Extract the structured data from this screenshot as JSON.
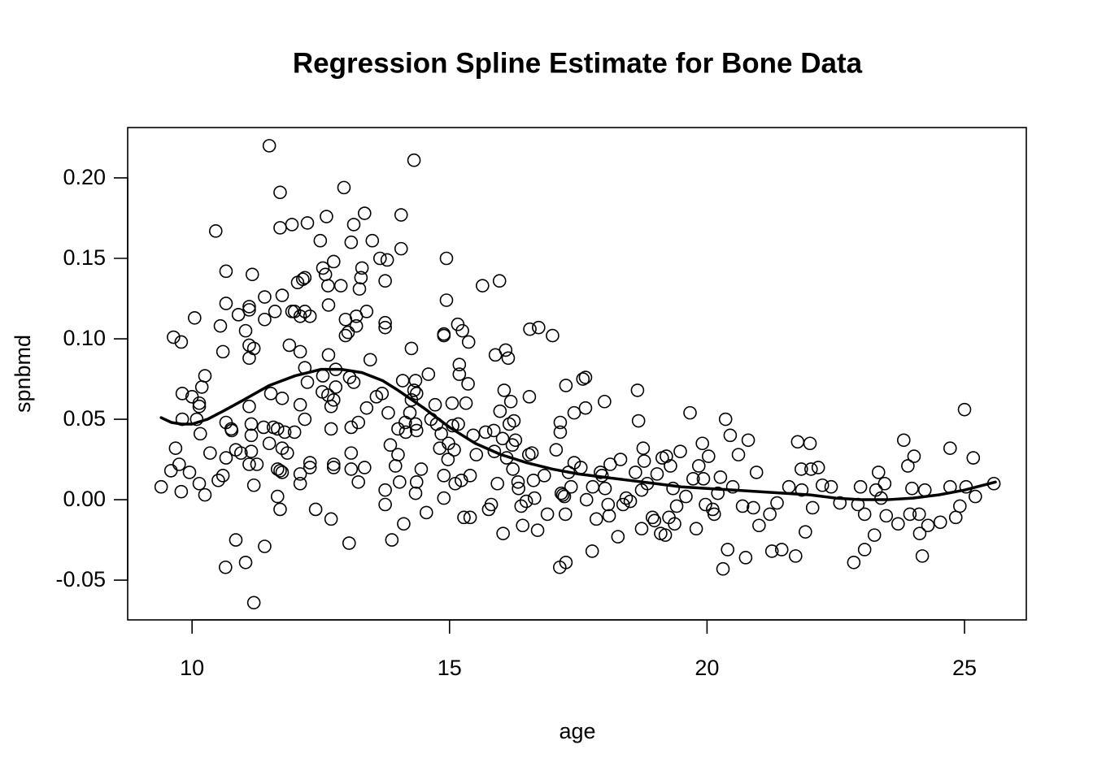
{
  "chart_data": {
    "type": "scatter",
    "title": "Regression Spline Estimate for Bone Data",
    "x_label": "age",
    "y_label": "spnbmd",
    "xlim": [
      8.75,
      26.2
    ],
    "ylim": [
      -0.0747,
      0.2313
    ],
    "xticks": [
      10,
      15,
      20,
      25
    ],
    "yticks": [
      -0.05,
      {
        "value": 0,
        "label": "0.00"
      },
      0.05,
      {
        "value": 0.1,
        "label": "0.10"
      },
      0.15,
      {
        "value": 0.2,
        "label": "0.20"
      }
    ],
    "grid": false,
    "series": [
      {
        "type": "scatter",
        "color": "#000000",
        "x": [
          9.4,
          9.59,
          9.64,
          9.68,
          9.75,
          9.79,
          9.79,
          9.81,
          9.81,
          9.95,
          10.0,
          10.05,
          10.09,
          10.14,
          10.14,
          10.14,
          10.16,
          10.19,
          10.25,
          10.25,
          10.35,
          10.46,
          10.51,
          10.55,
          10.6,
          10.6,
          10.66,
          10.65,
          10.66,
          10.66,
          10.66,
          10.76,
          10.77,
          10.85,
          10.85,
          10.9,
          10.95,
          11.04,
          11.04,
          11.11,
          11.11,
          11.11,
          11.11,
          11.11,
          11.11,
          11.15,
          11.15,
          11.15,
          11.17,
          11.2,
          11.2,
          11.2,
          11.26,
          11.39,
          11.41,
          11.41,
          11.41,
          11.5,
          11.53,
          11.5,
          11.58,
          11.61,
          11.66,
          11.66,
          11.66,
          11.71,
          11.71,
          11.71,
          11.71,
          11.75,
          11.75,
          11.75,
          11.75,
          11.8,
          11.85,
          11.89,
          11.94,
          11.94,
          11.99,
          11.99,
          12.05,
          12.1,
          12.1,
          12.1,
          12.1,
          12.1,
          12.15,
          12.19,
          12.19,
          12.19,
          12.19,
          12.24,
          12.24,
          12.29,
          12.29,
          12.29,
          12.4,
          12.49,
          12.53,
          12.54,
          12.59,
          12.54,
          12.61,
          12.65,
          12.64,
          12.65,
          12.64,
          12.7,
          12.7,
          12.7,
          12.75,
          12.75,
          12.75,
          12.75,
          12.79,
          12.79,
          12.89,
          12.95,
          12.98,
          12.98,
          13.03,
          13.06,
          13.05,
          13.09,
          13.09,
          13.14,
          13.09,
          13.09,
          13.14,
          13.19,
          13.19,
          13.28,
          13.25,
          13.3,
          13.23,
          13.23,
          13.35,
          13.39,
          13.35,
          13.39,
          13.46,
          13.5,
          13.58,
          13.65,
          13.69,
          13.75,
          13.79,
          13.75,
          13.75,
          13.75,
          13.75,
          13.81,
          13.85,
          13.88,
          13.95,
          14.0,
          14.0,
          14.03,
          14.06,
          14.06,
          14.09,
          14.11,
          14.14,
          14.15,
          14.23,
          14.26,
          14.26,
          14.31,
          14.31,
          14.36,
          14.34,
          14.34,
          14.36,
          14.34,
          14.36,
          14.45,
          14.55,
          14.59,
          14.64,
          14.72,
          14.75,
          14.81,
          14.84,
          14.89,
          14.89,
          14.89,
          14.89,
          14.94,
          14.94,
          14.97,
          14.98,
          15.05,
          15.06,
          15.09,
          15.11,
          15.16,
          15.17,
          15.19,
          15.19,
          15.23,
          15.25,
          15.28,
          15.32,
          15.36,
          15.4,
          15.37,
          15.4,
          15.46,
          15.52,
          15.64,
          15.7,
          15.76,
          15.81,
          15.86,
          15.87,
          15.89,
          15.93,
          15.97,
          15.98,
          16.03,
          16.04,
          16.06,
          16.09,
          16.11,
          16.14,
          16.16,
          16.19,
          16.22,
          16.23,
          16.25,
          16.28,
          16.33,
          16.34,
          16.39,
          16.42,
          16.49,
          16.54,
          16.55,
          16.56,
          16.6,
          16.63,
          16.65,
          16.71,
          16.73,
          16.84,
          16.9,
          17.0,
          17.07,
          17.14,
          17.15,
          17.15,
          17.17,
          17.2,
          17.23,
          17.25,
          17.26,
          17.26,
          17.31,
          17.36,
          17.42,
          17.42,
          17.55,
          17.59,
          17.64,
          17.64,
          17.66,
          17.77,
          17.78,
          17.85,
          17.93,
          17.96,
          18.01,
          18.02,
          18.08,
          18.1,
          18.12,
          18.27,
          18.32,
          18.37,
          18.43,
          18.51,
          18.61,
          18.65,
          18.67,
          18.73,
          18.73,
          18.76,
          18.78,
          18.84,
          18.94,
          18.98,
          19.03,
          19.1,
          19.13,
          19.19,
          19.21,
          19.26,
          19.29,
          19.34,
          19.37,
          19.41,
          19.48,
          19.59,
          19.67,
          19.73,
          19.79,
          19.84,
          19.91,
          19.93,
          19.97,
          20.03,
          20.11,
          20.14,
          20.21,
          20.26,
          20.31,
          20.36,
          20.4,
          20.45,
          20.5,
          20.61,
          20.69,
          20.75,
          20.8,
          20.9,
          20.96,
          21.01,
          21.22,
          21.26,
          21.36,
          21.45,
          21.59,
          21.72,
          21.76,
          21.83,
          21.84,
          21.91,
          22.0,
          22.02,
          22.05,
          22.16,
          22.24,
          22.41,
          22.58,
          22.85,
          22.93,
          22.98,
          23.06,
          23.06,
          23.25,
          23.28,
          23.33,
          23.38,
          23.45,
          23.48,
          23.71,
          23.82,
          23.9,
          23.94,
          23.98,
          24.02,
          24.12,
          24.13,
          24.18,
          24.23,
          24.29,
          24.53,
          24.72,
          24.72,
          24.83,
          24.91,
          25.0,
          25.03,
          25.17,
          25.21,
          25.57
        ],
        "values": [
          0.008,
          0.018,
          0.101,
          0.032,
          0.022,
          0.005,
          0.098,
          0.05,
          0.066,
          0.017,
          0.064,
          0.113,
          0.05,
          0.06,
          0.058,
          0.01,
          0.041,
          0.07,
          0.077,
          0.003,
          0.029,
          0.167,
          0.012,
          0.108,
          0.092,
          0.015,
          0.142,
          -0.042,
          0.122,
          0.048,
          0.026,
          0.044,
          0.043,
          -0.025,
          0.031,
          0.115,
          0.029,
          0.105,
          -0.039,
          0.12,
          0.118,
          0.088,
          0.058,
          0.096,
          0.022,
          0.03,
          0.04,
          0.047,
          0.14,
          0.009,
          0.094,
          -0.064,
          0.022,
          0.045,
          0.126,
          0.112,
          -0.029,
          0.22,
          0.066,
          0.035,
          0.045,
          0.117,
          0.044,
          0.019,
          0.002,
          0.191,
          0.169,
          -0.006,
          0.018,
          0.127,
          0.063,
          0.017,
          0.032,
          0.042,
          0.029,
          0.096,
          0.171,
          0.117,
          0.117,
          0.042,
          0.135,
          0.114,
          0.092,
          0.059,
          0.016,
          0.01,
          0.137,
          0.138,
          0.117,
          0.082,
          0.05,
          0.172,
          0.073,
          0.114,
          0.023,
          0.02,
          -0.006,
          0.161,
          0.067,
          0.144,
          0.14,
          0.077,
          0.176,
          0.121,
          0.133,
          0.09,
          0.065,
          -0.012,
          0.058,
          0.044,
          0.148,
          0.062,
          0.02,
          0.022,
          0.081,
          0.07,
          0.133,
          0.194,
          0.102,
          0.112,
          0.104,
          0.076,
          -0.027,
          0.16,
          0.045,
          0.073,
          0.019,
          0.029,
          0.171,
          0.114,
          0.108,
          0.138,
          0.131,
          0.144,
          0.048,
          0.011,
          0.178,
          0.057,
          0.02,
          0.117,
          0.087,
          0.161,
          0.064,
          0.15,
          0.066,
          0.107,
          0.149,
          0.136,
          0.11,
          0.006,
          -0.003,
          0.054,
          0.034,
          -0.025,
          0.021,
          0.044,
          0.028,
          0.011,
          0.177,
          0.156,
          0.074,
          -0.015,
          0.048,
          0.042,
          0.054,
          0.094,
          0.062,
          0.211,
          0.068,
          0.066,
          0.074,
          0.047,
          0.043,
          0.004,
          0.011,
          0.019,
          -0.008,
          0.078,
          0.05,
          0.059,
          0.047,
          0.032,
          0.041,
          0.103,
          0.102,
          0.001,
          0.015,
          0.15,
          0.124,
          0.025,
          0.035,
          0.06,
          0.046,
          0.031,
          0.01,
          0.109,
          0.047,
          0.084,
          0.078,
          0.012,
          0.105,
          -0.011,
          0.06,
          0.072,
          -0.011,
          0.098,
          0.015,
          0.04,
          0.028,
          0.133,
          0.042,
          -0.006,
          -0.003,
          0.043,
          0.03,
          0.09,
          0.01,
          0.136,
          0.055,
          0.038,
          -0.021,
          0.068,
          0.093,
          0.026,
          0.088,
          0.047,
          0.061,
          0.034,
          0.019,
          0.049,
          0.037,
          0.011,
          0.007,
          -0.004,
          -0.016,
          -0.001,
          0.028,
          0.064,
          0.106,
          0.029,
          0.012,
          0.001,
          -0.019,
          0.107,
          0.015,
          -0.009,
          0.102,
          0.031,
          -0.042,
          0.042,
          0.048,
          0.004,
          0.003,
          0.002,
          -0.009,
          -0.039,
          0.071,
          0.017,
          0.008,
          0.054,
          0.023,
          0.02,
          0.075,
          0.076,
          0.057,
          0.0,
          -0.032,
          0.008,
          -0.012,
          0.017,
          0.015,
          0.061,
          0.007,
          -0.003,
          -0.01,
          0.022,
          -0.023,
          0.025,
          -0.003,
          0.001,
          -0.001,
          0.017,
          0.068,
          0.049,
          0.006,
          -0.018,
          0.032,
          0.024,
          0.01,
          -0.011,
          -0.013,
          0.016,
          -0.021,
          0.026,
          -0.022,
          0.027,
          -0.011,
          0.021,
          0.007,
          -0.015,
          -0.004,
          0.03,
          0.002,
          0.054,
          0.013,
          -0.018,
          0.021,
          0.035,
          0.013,
          -0.003,
          0.027,
          -0.006,
          -0.009,
          0.004,
          0.014,
          -0.043,
          0.05,
          -0.031,
          0.04,
          0.008,
          0.028,
          -0.004,
          -0.036,
          0.037,
          -0.005,
          0.017,
          -0.016,
          -0.009,
          -0.032,
          -0.002,
          -0.031,
          0.008,
          -0.035,
          0.036,
          0.019,
          0.006,
          -0.02,
          0.035,
          0.019,
          -0.005,
          0.02,
          0.009,
          0.008,
          -0.002,
          -0.039,
          -0.003,
          0.008,
          -0.031,
          -0.009,
          -0.022,
          0.006,
          0.017,
          0.001,
          0.01,
          -0.01,
          -0.015,
          0.037,
          0.021,
          -0.009,
          0.007,
          0.027,
          -0.009,
          -0.021,
          -0.035,
          0.006,
          -0.016,
          -0.014,
          0.032,
          0.008,
          -0.011,
          -0.004,
          0.056,
          0.008,
          0.026,
          0.002,
          0.01
        ]
      },
      {
        "type": "line",
        "color": "#000000",
        "x": [
          9.4,
          9.6,
          9.8,
          10.0,
          10.3,
          10.6,
          11.0,
          11.5,
          12.0,
          12.5,
          12.9,
          13.3,
          13.7,
          14.0,
          14.5,
          15.0,
          15.5,
          16.0,
          16.5,
          17.0,
          17.5,
          18.0,
          18.5,
          19.0,
          19.5,
          20.0,
          20.5,
          21.0,
          21.5,
          22.0,
          22.5,
          23.0,
          23.5,
          24.0,
          24.5,
          25.0,
          25.6
        ],
        "values": [
          0.051,
          0.048,
          0.047,
          0.047,
          0.05,
          0.055,
          0.062,
          0.071,
          0.077,
          0.081,
          0.081,
          0.079,
          0.074,
          0.068,
          0.057,
          0.045,
          0.035,
          0.028,
          0.023,
          0.019,
          0.016,
          0.014,
          0.012,
          0.01,
          0.008,
          0.007,
          0.006,
          0.005,
          0.004,
          0.003,
          0.001,
          0.0,
          0.0,
          0.001,
          0.003,
          0.006,
          0.011
        ]
      }
    ]
  }
}
